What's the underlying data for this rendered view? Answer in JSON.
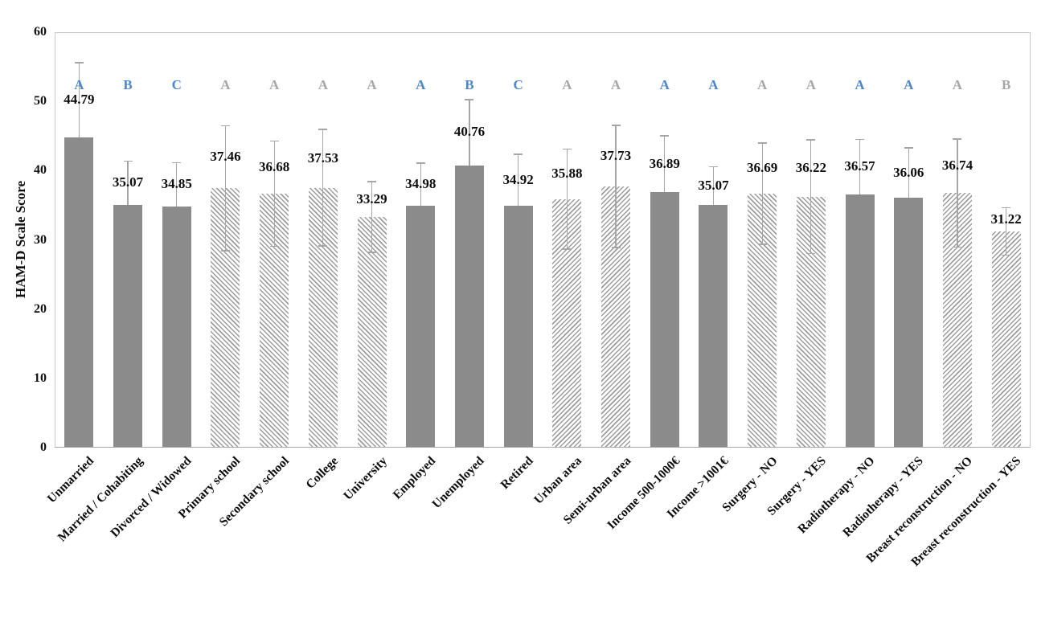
{
  "page": {
    "background": "#ffffff"
  },
  "chart_data": {
    "type": "bar",
    "title": "",
    "xlabel": "",
    "ylabel": "HAM-D Scale Score",
    "ylim": [
      0,
      60
    ],
    "yticks": [
      0,
      10,
      20,
      30,
      40,
      50,
      60
    ],
    "grid": false,
    "legend": null,
    "categories": [
      "Unmarried",
      "Married / Cohabiting",
      "Divorced / Widowed",
      "Primary school",
      "Secondary school",
      "College",
      "University",
      "Employed",
      "Unemployed",
      "Retired",
      "Urban area",
      "Semi-urban area",
      "Income 500-1000€",
      "Income >1001€",
      "Surgery - NO",
      "Surgery - YES",
      "Radiotherapy - NO",
      "Radiotherapy - YES",
      "Breast reconstruction - NO",
      "Breast reconstruction - YES"
    ],
    "values": [
      44.79,
      35.07,
      34.85,
      37.46,
      36.68,
      37.53,
      33.29,
      34.98,
      40.76,
      34.92,
      35.88,
      37.73,
      36.89,
      35.07,
      36.69,
      36.22,
      36.57,
      36.06,
      36.74,
      31.22
    ],
    "value_labels": [
      "44.79",
      "35.07",
      "34.85",
      "37.46",
      "36.68",
      "37.53",
      "33.29",
      "34.98",
      "40.76",
      "34.92",
      "35.88",
      "37.73",
      "36.89",
      "35.07",
      "36.69",
      "36.22",
      "36.57",
      "36.06",
      "36.74",
      "31.22"
    ],
    "errors_upper": [
      10.9,
      6.4,
      6.4,
      9.1,
      7.7,
      8.5,
      5.2,
      6.2,
      9.6,
      7.5,
      7.3,
      8.9,
      8.2,
      5.6,
      7.4,
      8.3,
      8.0,
      7.3,
      7.9,
      3.5
    ],
    "letters": [
      "A",
      "B",
      "C",
      "A",
      "A",
      "A",
      "A",
      "A",
      "B",
      "C",
      "A",
      "A",
      "A",
      "A",
      "A",
      "A",
      "A",
      "A",
      "A",
      "B"
    ],
    "letter_color_keys": [
      "blue",
      "blue",
      "blue",
      "gray",
      "gray",
      "gray",
      "gray",
      "blue",
      "blue",
      "blue",
      "gray",
      "gray",
      "blue",
      "blue",
      "gray",
      "gray",
      "blue",
      "blue",
      "gray",
      "gray"
    ],
    "patterns": [
      "solid",
      "solid",
      "solid",
      "hatch-back",
      "hatch-back",
      "hatch-back",
      "hatch-back",
      "solid",
      "solid",
      "solid",
      "hatch-fwd",
      "hatch-fwd",
      "solid",
      "solid",
      "hatch-back",
      "hatch-back",
      "solid",
      "solid",
      "hatch-fwd",
      "hatch-fwd"
    ],
    "colors": {
      "bar_fill": "#8B8B8B",
      "hatch_line": "#9C9C9C",
      "error_bar": "#A6A6A6",
      "letter_blue": "#4E86C8",
      "letter_gray": "#A6A6A6",
      "axis_line": "#A6A6A6",
      "plot_border": "#C8C8C8",
      "text": "#0D0D0D"
    }
  }
}
